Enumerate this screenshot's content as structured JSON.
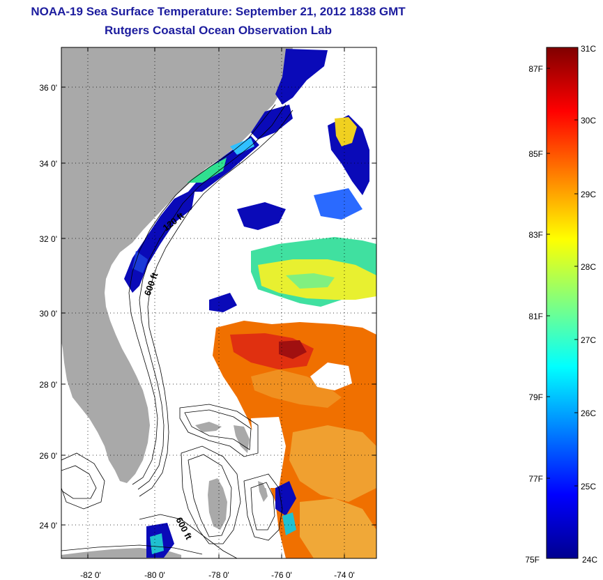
{
  "header": {
    "title": "NOAA-19 Sea Surface Temperature:  September 21, 2012 1838 GMT",
    "subtitle": "Rutgers Coastal Ocean Observation Lab"
  },
  "map": {
    "lon_ticks": [
      "-82 0'",
      "-80 0'",
      "-78 0'",
      "-76 0'",
      "-74 0'"
    ],
    "lat_ticks": [
      "36 0'",
      "34 0'",
      "32 0'",
      "30 0'",
      "28 0'",
      "26 0'",
      "24 0'"
    ],
    "contour_labels": [
      "120 ft",
      "600 ft",
      "600 ft"
    ],
    "colors": {
      "land": "#a9a9a9",
      "frame": "#000000",
      "grid": "#000000"
    }
  },
  "colorbar": {
    "celsius_labels": [
      "31C",
      "30C",
      "29C",
      "28C",
      "27C",
      "26C",
      "25C",
      "24C"
    ],
    "fahrenheit_labels": [
      "87F",
      "85F",
      "83F",
      "81F",
      "79F",
      "77F",
      "75F"
    ],
    "range_c": [
      24,
      31
    ],
    "colormap": "jet"
  }
}
